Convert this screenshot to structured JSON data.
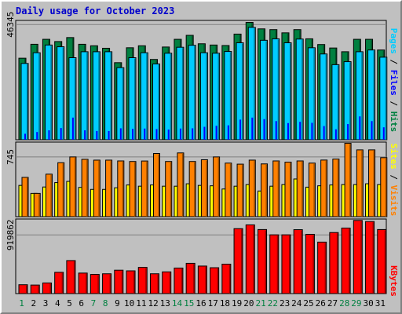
{
  "title": "Daily usage for October 2023",
  "colors": {
    "pages": "#00ccff",
    "files": "#0000ff",
    "hits": "#008040",
    "sites": "#ffff00",
    "visits": "#ff8000",
    "kbytes": "#ff0000"
  },
  "chart_data": [
    {
      "type": "bar",
      "panel": "hits-files-pages",
      "categories": [
        "1",
        "2",
        "3",
        "4",
        "5",
        "6",
        "7",
        "8",
        "9",
        "10",
        "11",
        "12",
        "13",
        "14",
        "15",
        "16",
        "17",
        "18",
        "19",
        "20",
        "21",
        "22",
        "23",
        "24",
        "25",
        "26",
        "27",
        "28",
        "29",
        "30",
        "31"
      ],
      "weekend_categories": [
        "1",
        "7",
        "8",
        "14",
        "15",
        "21",
        "22",
        "28",
        "29"
      ],
      "ytick_label": "46345",
      "legend": [
        "Pages",
        "Files",
        "Hits"
      ],
      "series": [
        {
          "name": "Hits",
          "values": [
            32800,
            38400,
            40400,
            39500,
            41100,
            38400,
            37800,
            36800,
            31000,
            37000,
            37800,
            32300,
            37300,
            40400,
            42000,
            38600,
            38100,
            37900,
            42500,
            47200,
            44600,
            44300,
            43000,
            44300,
            40600,
            38300,
            36900,
            35400,
            40400,
            40400,
            36100
          ]
        },
        {
          "name": "Files",
          "values": [
            2400,
            3100,
            3800,
            4700,
            8900,
            3800,
            3500,
            3500,
            4600,
            4400,
            4500,
            4300,
            4100,
            4500,
            4600,
            5200,
            5600,
            5800,
            8100,
            8900,
            8300,
            7500,
            6700,
            7200,
            6800,
            5500,
            4200,
            6300,
            9400,
            7500,
            5000
          ]
        },
        {
          "name": "Pages",
          "values": [
            30700,
            35000,
            38100,
            37400,
            33000,
            35400,
            35400,
            35400,
            29000,
            33000,
            35000,
            30500,
            34800,
            37200,
            38000,
            35000,
            34800,
            35500,
            39000,
            45200,
            40000,
            40600,
            39000,
            40500,
            37000,
            34500,
            30200,
            31400,
            35400,
            36100,
            33200
          ]
        }
      ]
    },
    {
      "type": "bar",
      "panel": "visits-sites",
      "categories": [
        "1",
        "2",
        "3",
        "4",
        "5",
        "6",
        "7",
        "8",
        "9",
        "10",
        "11",
        "12",
        "13",
        "14",
        "15",
        "16",
        "17",
        "18",
        "19",
        "20",
        "21",
        "22",
        "23",
        "24",
        "25",
        "26",
        "27",
        "28",
        "29",
        "30",
        "31"
      ],
      "ytick_label": "745",
      "legend": [
        "Sites",
        "Visits"
      ],
      "series": [
        {
          "name": "Visits",
          "values": [
            490,
            290,
            530,
            673,
            745,
            715,
            705,
            705,
            695,
            688,
            694,
            788,
            688,
            795,
            688,
            710,
            745,
            668,
            655,
            705,
            658,
            695,
            680,
            695,
            668,
            706,
            718,
            915,
            833,
            833,
            736
          ]
        },
        {
          "name": "Sites",
          "values": [
            390,
            290,
            370,
            425,
            440,
            365,
            340,
            340,
            360,
            395,
            380,
            395,
            380,
            380,
            410,
            390,
            385,
            345,
            380,
            400,
            320,
            380,
            400,
            470,
            368,
            385,
            395,
            400,
            400,
            410,
            400
          ]
        }
      ]
    },
    {
      "type": "bar",
      "panel": "kbytes",
      "categories": [
        "1",
        "2",
        "3",
        "4",
        "5",
        "6",
        "7",
        "8",
        "9",
        "10",
        "11",
        "12",
        "13",
        "14",
        "15",
        "16",
        "17",
        "18",
        "19",
        "20",
        "21",
        "22",
        "23",
        "24",
        "25",
        "26",
        "27",
        "28",
        "29",
        "30",
        "31"
      ],
      "ytick_label": "919862",
      "legend": [
        "KBytes"
      ],
      "series": [
        {
          "name": "KBytes",
          "values": [
            139000,
            134000,
            167000,
            334000,
            518000,
            322000,
            301000,
            311000,
            367000,
            357000,
            411000,
            311000,
            341000,
            401000,
            475000,
            432000,
            406000,
            462000,
            1019000,
            1078000,
            1005000,
            922000,
            922000,
            1003000,
            930000,
            808000,
            958000,
            1028000,
            1148000,
            1131000,
            1005000
          ]
        }
      ]
    }
  ]
}
